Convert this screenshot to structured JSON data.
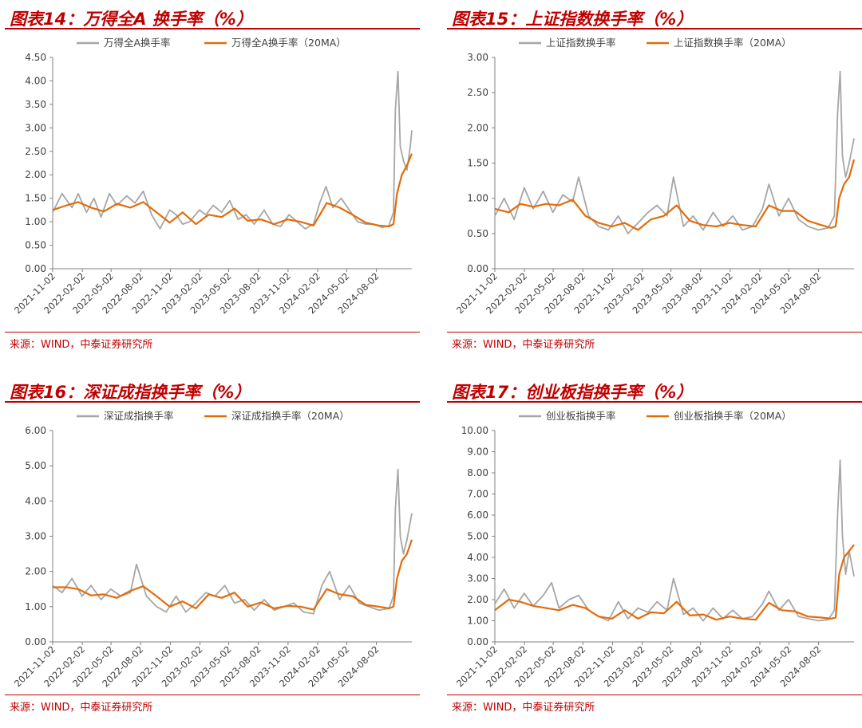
{
  "source_text": "来源：WIND，中泰证券研究所",
  "colors": {
    "accent": "#c00000",
    "raw": "#a6a6a6",
    "ma": "#e36c09",
    "axis": "#808080"
  },
  "chart_data": [
    {
      "type": "line",
      "title": "图表14：万得全A 换手率（%）",
      "ylim": [
        0,
        4.5
      ],
      "yticks": [
        "0.00",
        "0.50",
        "1.00",
        "1.50",
        "2.00",
        "2.50",
        "3.00",
        "3.50",
        "4.00",
        "4.50"
      ],
      "x_ticks": [
        "2021-11-02",
        "2022-02-02",
        "2022-05-02",
        "2022-08-02",
        "2022-11-02",
        "2023-02-02",
        "2023-05-02",
        "2023-08-02",
        "2023-11-02",
        "2024-02-02",
        "2024-05-02",
        "2024-08-02"
      ],
      "x_range": [
        "2021-11-02",
        "2024-11-20"
      ],
      "legend_position": "top",
      "series": [
        {
          "name": "万得全A换手率",
          "color": "#a6a6a6",
          "x": [
            "2021-11-02",
            "2021-12-01",
            "2022-01-01",
            "2022-01-20",
            "2022-02-15",
            "2022-03-10",
            "2022-04-01",
            "2022-04-27",
            "2022-05-20",
            "2022-06-20",
            "2022-07-15",
            "2022-08-10",
            "2022-09-05",
            "2022-10-01",
            "2022-10-31",
            "2022-11-20",
            "2022-12-10",
            "2023-01-01",
            "2023-01-31",
            "2023-02-20",
            "2023-03-15",
            "2023-04-10",
            "2023-05-05",
            "2023-05-31",
            "2023-06-25",
            "2023-07-20",
            "2023-08-20",
            "2023-09-15",
            "2023-10-10",
            "2023-11-05",
            "2023-11-30",
            "2023-12-25",
            "2024-01-20",
            "2024-02-08",
            "2024-02-28",
            "2024-03-20",
            "2024-04-15",
            "2024-05-10",
            "2024-06-05",
            "2024-07-01",
            "2024-07-25",
            "2024-08-20",
            "2024-09-10",
            "2024-09-24",
            "2024-09-30",
            "2024-10-08",
            "2024-10-15",
            "2024-10-25",
            "2024-11-05",
            "2024-11-15",
            "2024-11-20"
          ],
          "values": [
            1.2,
            1.6,
            1.3,
            1.6,
            1.2,
            1.5,
            1.1,
            1.6,
            1.35,
            1.55,
            1.4,
            1.65,
            1.15,
            0.85,
            1.25,
            1.15,
            0.95,
            1.0,
            1.25,
            1.15,
            1.35,
            1.2,
            1.45,
            1.05,
            1.15,
            0.95,
            1.25,
            0.95,
            0.9,
            1.15,
            1.0,
            0.85,
            0.95,
            1.4,
            1.75,
            1.3,
            1.5,
            1.25,
            1.0,
            0.95,
            0.95,
            0.88,
            0.92,
            1.2,
            3.4,
            4.2,
            2.6,
            2.3,
            2.1,
            2.6,
            2.95
          ]
        },
        {
          "name": "万得全A换手率（20MA）",
          "color": "#e36c09",
          "x": [
            "2021-11-02",
            "2021-12-15",
            "2022-01-20",
            "2022-03-01",
            "2022-04-10",
            "2022-05-20",
            "2022-07-01",
            "2022-08-10",
            "2022-09-20",
            "2022-10-31",
            "2022-12-10",
            "2023-01-20",
            "2023-03-01",
            "2023-04-10",
            "2023-05-20",
            "2023-06-30",
            "2023-08-10",
            "2023-09-20",
            "2023-10-31",
            "2023-12-10",
            "2024-01-20",
            "2024-03-01",
            "2024-04-10",
            "2024-05-20",
            "2024-06-30",
            "2024-08-10",
            "2024-09-10",
            "2024-09-24",
            "2024-10-05",
            "2024-10-20",
            "2024-11-05",
            "2024-11-20"
          ],
          "values": [
            1.25,
            1.35,
            1.42,
            1.3,
            1.22,
            1.38,
            1.3,
            1.42,
            1.2,
            0.98,
            1.2,
            0.95,
            1.15,
            1.1,
            1.28,
            1.02,
            1.05,
            0.95,
            1.05,
            1.0,
            0.92,
            1.4,
            1.3,
            1.15,
            0.98,
            0.92,
            0.9,
            0.95,
            1.6,
            2.0,
            2.2,
            2.45
          ]
        }
      ]
    },
    {
      "type": "line",
      "title": "图表15：上证指数换手率（%）",
      "ylim": [
        0,
        3.0
      ],
      "yticks": [
        "0.00",
        "0.50",
        "1.00",
        "1.50",
        "2.00",
        "2.50",
        "3.00"
      ],
      "x_ticks": [
        "2021-11-02",
        "2022-02-02",
        "2022-05-02",
        "2022-08-02",
        "2022-11-02",
        "2023-02-02",
        "2023-05-02",
        "2023-08-02",
        "2023-11-02",
        "2024-02-02",
        "2024-05-02",
        "2024-08-02"
      ],
      "x_range": [
        "2021-11-02",
        "2024-11-20"
      ],
      "legend_position": "top",
      "series": [
        {
          "name": "上证指数换手率",
          "color": "#a6a6a6",
          "x": [
            "2021-11-02",
            "2021-12-01",
            "2022-01-01",
            "2022-02-01",
            "2022-03-01",
            "2022-04-01",
            "2022-05-01",
            "2022-06-01",
            "2022-07-01",
            "2022-07-20",
            "2022-08-20",
            "2022-09-20",
            "2022-10-20",
            "2022-11-20",
            "2022-12-20",
            "2023-01-20",
            "2023-02-20",
            "2023-03-20",
            "2023-04-20",
            "2023-05-10",
            "2023-06-10",
            "2023-07-10",
            "2023-08-10",
            "2023-09-10",
            "2023-10-10",
            "2023-11-10",
            "2023-12-10",
            "2024-01-10",
            "2024-02-10",
            "2024-03-01",
            "2024-04-01",
            "2024-05-01",
            "2024-06-01",
            "2024-07-01",
            "2024-08-01",
            "2024-09-01",
            "2024-09-20",
            "2024-09-30",
            "2024-10-08",
            "2024-10-15",
            "2024-10-25",
            "2024-11-05",
            "2024-11-20"
          ],
          "values": [
            0.75,
            1.0,
            0.7,
            1.15,
            0.85,
            1.1,
            0.8,
            1.05,
            0.95,
            1.3,
            0.75,
            0.6,
            0.55,
            0.75,
            0.5,
            0.65,
            0.8,
            0.9,
            0.75,
            1.3,
            0.6,
            0.75,
            0.55,
            0.8,
            0.6,
            0.75,
            0.55,
            0.6,
            0.85,
            1.2,
            0.75,
            1.0,
            0.7,
            0.6,
            0.55,
            0.58,
            0.75,
            2.2,
            2.8,
            1.6,
            1.3,
            1.5,
            1.85
          ]
        },
        {
          "name": "上证指数换手率（20MA）",
          "color": "#e36c09",
          "x": [
            "2021-11-02",
            "2021-12-15",
            "2022-01-20",
            "2022-03-01",
            "2022-04-10",
            "2022-05-20",
            "2022-07-01",
            "2022-08-10",
            "2022-09-20",
            "2022-10-31",
            "2022-12-10",
            "2023-01-20",
            "2023-03-01",
            "2023-04-10",
            "2023-05-20",
            "2023-06-30",
            "2023-08-10",
            "2023-09-20",
            "2023-10-31",
            "2023-12-10",
            "2024-01-20",
            "2024-03-01",
            "2024-04-10",
            "2024-05-20",
            "2024-06-30",
            "2024-08-10",
            "2024-09-10",
            "2024-09-24",
            "2024-10-05",
            "2024-10-20",
            "2024-11-05",
            "2024-11-20"
          ],
          "values": [
            0.85,
            0.8,
            0.92,
            0.88,
            0.92,
            0.9,
            0.98,
            0.75,
            0.65,
            0.6,
            0.65,
            0.55,
            0.7,
            0.75,
            0.9,
            0.68,
            0.62,
            0.6,
            0.65,
            0.62,
            0.6,
            0.9,
            0.82,
            0.82,
            0.68,
            0.62,
            0.58,
            0.6,
            1.0,
            1.2,
            1.3,
            1.55
          ]
        }
      ]
    },
    {
      "type": "line",
      "title": "图表16：深证成指换手率（%）",
      "ylim": [
        0,
        6.0
      ],
      "yticks": [
        "0.00",
        "1.00",
        "2.00",
        "3.00",
        "4.00",
        "5.00",
        "6.00"
      ],
      "x_ticks": [
        "2021-11-02",
        "2022-02-02",
        "2022-05-02",
        "2022-08-02",
        "2022-11-02",
        "2023-02-02",
        "2023-05-02",
        "2023-08-02",
        "2023-11-02",
        "2024-02-02",
        "2024-05-02",
        "2024-08-02"
      ],
      "x_range": [
        "2021-11-02",
        "2024-11-20"
      ],
      "legend_position": "top",
      "series": [
        {
          "name": "深证成指换手率",
          "color": "#a6a6a6",
          "x": [
            "2021-11-02",
            "2021-12-01",
            "2022-01-01",
            "2022-02-01",
            "2022-03-01",
            "2022-04-01",
            "2022-05-01",
            "2022-06-01",
            "2022-07-01",
            "2022-07-20",
            "2022-08-20",
            "2022-09-20",
            "2022-10-20",
            "2022-11-20",
            "2022-12-20",
            "2023-01-20",
            "2023-02-20",
            "2023-03-20",
            "2023-04-20",
            "2023-05-20",
            "2023-06-20",
            "2023-07-20",
            "2023-08-20",
            "2023-09-20",
            "2023-10-20",
            "2023-11-20",
            "2023-12-20",
            "2024-01-20",
            "2024-02-15",
            "2024-03-10",
            "2024-04-10",
            "2024-05-10",
            "2024-06-10",
            "2024-07-10",
            "2024-08-10",
            "2024-09-10",
            "2024-09-24",
            "2024-09-30",
            "2024-10-08",
            "2024-10-15",
            "2024-10-25",
            "2024-11-05",
            "2024-11-20"
          ],
          "values": [
            1.6,
            1.4,
            1.8,
            1.3,
            1.6,
            1.2,
            1.5,
            1.3,
            1.4,
            2.2,
            1.3,
            1.0,
            0.85,
            1.3,
            0.85,
            1.1,
            1.4,
            1.3,
            1.6,
            1.1,
            1.2,
            0.9,
            1.2,
            0.9,
            1.0,
            1.1,
            0.85,
            0.8,
            1.6,
            2.0,
            1.2,
            1.6,
            1.1,
            1.0,
            0.9,
            0.95,
            1.3,
            3.8,
            4.9,
            3.0,
            2.5,
            2.9,
            3.65
          ]
        },
        {
          "name": "深证成指换手率（20MA）",
          "color": "#e36c09",
          "x": [
            "2021-11-02",
            "2021-12-15",
            "2022-01-20",
            "2022-03-01",
            "2022-04-10",
            "2022-05-20",
            "2022-07-01",
            "2022-08-10",
            "2022-09-20",
            "2022-10-31",
            "2022-12-10",
            "2023-01-20",
            "2023-03-01",
            "2023-04-10",
            "2023-05-20",
            "2023-06-30",
            "2023-08-10",
            "2023-09-20",
            "2023-10-31",
            "2023-12-10",
            "2024-01-20",
            "2024-03-01",
            "2024-04-10",
            "2024-05-20",
            "2024-06-30",
            "2024-08-10",
            "2024-09-10",
            "2024-09-24",
            "2024-10-05",
            "2024-10-20",
            "2024-11-05",
            "2024-11-20"
          ],
          "values": [
            1.55,
            1.55,
            1.5,
            1.32,
            1.35,
            1.25,
            1.45,
            1.58,
            1.3,
            1.0,
            1.15,
            0.95,
            1.35,
            1.25,
            1.4,
            1.0,
            1.12,
            0.95,
            1.02,
            1.0,
            0.92,
            1.5,
            1.35,
            1.3,
            1.05,
            1.0,
            0.95,
            1.0,
            1.8,
            2.3,
            2.5,
            2.9
          ]
        }
      ]
    },
    {
      "type": "line",
      "title": "图表17：创业板指换手率（%）",
      "ylim": [
        0,
        10.0
      ],
      "yticks": [
        "0.00",
        "1.00",
        "2.00",
        "3.00",
        "4.00",
        "5.00",
        "6.00",
        "7.00",
        "8.00",
        "9.00",
        "10.00"
      ],
      "x_ticks": [
        "2021-11-02",
        "2022-02-02",
        "2022-05-02",
        "2022-08-02",
        "2022-11-02",
        "2023-02-02",
        "2023-05-02",
        "2023-08-02",
        "2023-11-02",
        "2024-02-02",
        "2024-05-02",
        "2024-08-02"
      ],
      "x_range": [
        "2021-11-02",
        "2024-11-20"
      ],
      "legend_position": "top",
      "series": [
        {
          "name": "创业板指换手率",
          "color": "#a6a6a6",
          "x": [
            "2021-11-02",
            "2021-12-01",
            "2022-01-01",
            "2022-02-01",
            "2022-03-01",
            "2022-04-01",
            "2022-04-27",
            "2022-05-20",
            "2022-06-20",
            "2022-07-20",
            "2022-08-20",
            "2022-09-20",
            "2022-10-20",
            "2022-11-20",
            "2022-12-20",
            "2023-01-20",
            "2023-02-20",
            "2023-03-20",
            "2023-04-20",
            "2023-05-10",
            "2023-06-10",
            "2023-07-10",
            "2023-08-10",
            "2023-09-10",
            "2023-10-10",
            "2023-11-10",
            "2023-12-10",
            "2024-01-10",
            "2024-02-10",
            "2024-03-01",
            "2024-04-01",
            "2024-05-01",
            "2024-06-01",
            "2024-07-01",
            "2024-08-01",
            "2024-09-01",
            "2024-09-20",
            "2024-09-30",
            "2024-10-08",
            "2024-10-15",
            "2024-10-25",
            "2024-11-05",
            "2024-11-20"
          ],
          "values": [
            1.8,
            2.5,
            1.6,
            2.3,
            1.7,
            2.2,
            2.8,
            1.6,
            2.0,
            2.2,
            1.5,
            1.2,
            1.0,
            1.9,
            1.1,
            1.6,
            1.4,
            1.9,
            1.5,
            3.0,
            1.3,
            1.6,
            1.0,
            1.6,
            1.1,
            1.5,
            1.1,
            1.2,
            1.8,
            2.4,
            1.5,
            2.0,
            1.2,
            1.1,
            1.0,
            1.05,
            1.5,
            6.0,
            8.6,
            5.0,
            3.2,
            4.3,
            3.1
          ]
        },
        {
          "name": "创业板指换手率（20MA）",
          "color": "#e36c09",
          "x": [
            "2021-11-02",
            "2021-12-15",
            "2022-01-20",
            "2022-03-01",
            "2022-04-10",
            "2022-05-20",
            "2022-07-01",
            "2022-08-10",
            "2022-09-20",
            "2022-10-31",
            "2022-12-10",
            "2023-01-20",
            "2023-03-01",
            "2023-04-10",
            "2023-05-20",
            "2023-06-30",
            "2023-08-10",
            "2023-09-20",
            "2023-10-31",
            "2023-12-10",
            "2024-01-20",
            "2024-03-01",
            "2024-04-10",
            "2024-05-20",
            "2024-06-30",
            "2024-08-10",
            "2024-09-10",
            "2024-09-24",
            "2024-10-05",
            "2024-10-20",
            "2024-11-05",
            "2024-11-20"
          ],
          "values": [
            1.5,
            2.0,
            1.9,
            1.7,
            1.6,
            1.5,
            1.75,
            1.6,
            1.2,
            1.1,
            1.5,
            1.1,
            1.4,
            1.35,
            1.9,
            1.25,
            1.3,
            1.05,
            1.2,
            1.1,
            1.05,
            1.85,
            1.5,
            1.45,
            1.2,
            1.15,
            1.1,
            1.15,
            3.2,
            4.0,
            4.3,
            4.6
          ]
        }
      ]
    }
  ]
}
